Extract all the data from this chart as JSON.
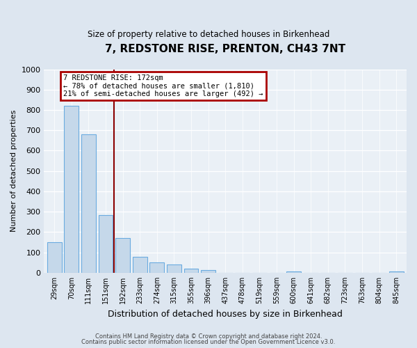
{
  "title": "7, REDSTONE RISE, PRENTON, CH43 7NT",
  "subtitle": "Size of property relative to detached houses in Birkenhead",
  "xlabel": "Distribution of detached houses by size in Birkenhead",
  "ylabel": "Number of detached properties",
  "bar_labels": [
    "29sqm",
    "70sqm",
    "111sqm",
    "151sqm",
    "192sqm",
    "233sqm",
    "274sqm",
    "315sqm",
    "355sqm",
    "396sqm",
    "437sqm",
    "478sqm",
    "519sqm",
    "559sqm",
    "600sqm",
    "641sqm",
    "682sqm",
    "723sqm",
    "763sqm",
    "804sqm",
    "845sqm"
  ],
  "bar_heights": [
    150,
    820,
    680,
    285,
    172,
    78,
    52,
    42,
    20,
    15,
    0,
    0,
    0,
    0,
    8,
    0,
    0,
    0,
    0,
    0,
    8
  ],
  "bar_color": "#c5d8ea",
  "bar_edge_color": "#6aabe0",
  "vline_x": 3.5,
  "vline_color": "#8b0000",
  "annotation_title": "7 REDSTONE RISE: 172sqm",
  "annotation_line1": "← 78% of detached houses are smaller (1,810)",
  "annotation_line2": "21% of semi-detached houses are larger (492) →",
  "annotation_box_color": "#aa0000",
  "ylim": [
    0,
    1000
  ],
  "yticks": [
    0,
    100,
    200,
    300,
    400,
    500,
    600,
    700,
    800,
    900,
    1000
  ],
  "footer1": "Contains HM Land Registry data © Crown copyright and database right 2024.",
  "footer2": "Contains public sector information licensed under the Open Government Licence v3.0.",
  "bg_color": "#dde6f0",
  "plot_bg_color": "#eaf0f6"
}
